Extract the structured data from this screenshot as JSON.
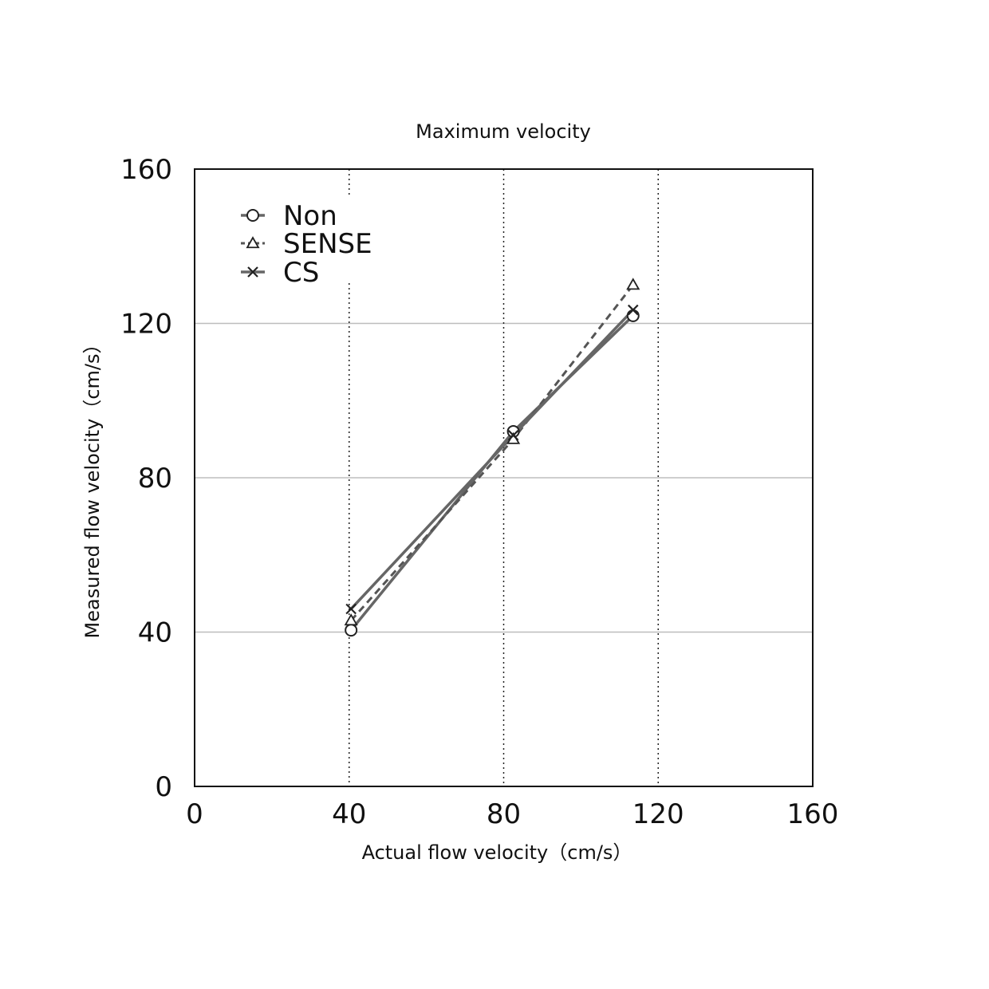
{
  "chart_data": {
    "type": "line",
    "title": "Maximum velocity",
    "xlabel": "Actual flow velocity（cm/s）",
    "ylabel": "Measured flow velocity（cm/s）",
    "xlim": [
      0,
      160
    ],
    "ylim": [
      0,
      160
    ],
    "xticks": [
      0,
      40,
      80,
      120,
      160
    ],
    "yticks": [
      0,
      40,
      80,
      120,
      160
    ],
    "x_tick_labels": [
      "0",
      "40",
      "80",
      "120",
      "160"
    ],
    "y_tick_labels": [
      "0",
      "40",
      "80",
      "120",
      "160"
    ],
    "grid": {
      "x": "dotted vertical lines at 40, 80, 120",
      "y": "solid horizontal lines at 40, 80, 120"
    },
    "legend_position": "top-left",
    "series": [
      {
        "name": "Non",
        "marker": "circle",
        "line": "solid",
        "color": "#666666",
        "points": [
          {
            "x": 40.5,
            "y": 40.5
          },
          {
            "x": 82.5,
            "y": 92.0
          },
          {
            "x": 113.5,
            "y": 122.0
          }
        ]
      },
      {
        "name": "SENSE",
        "marker": "triangle",
        "line": "dashed",
        "color": "#555555",
        "points": [
          {
            "x": 40.5,
            "y": 43.0
          },
          {
            "x": 82.5,
            "y": 90.0
          },
          {
            "x": 113.5,
            "y": 130.0
          }
        ]
      },
      {
        "name": "CS",
        "marker": "x",
        "line": "solid",
        "color": "#666666",
        "points": [
          {
            "x": 40.5,
            "y": 46.0
          },
          {
            "x": 82.5,
            "y": 91.0
          },
          {
            "x": 113.5,
            "y": 123.5
          }
        ]
      }
    ]
  }
}
